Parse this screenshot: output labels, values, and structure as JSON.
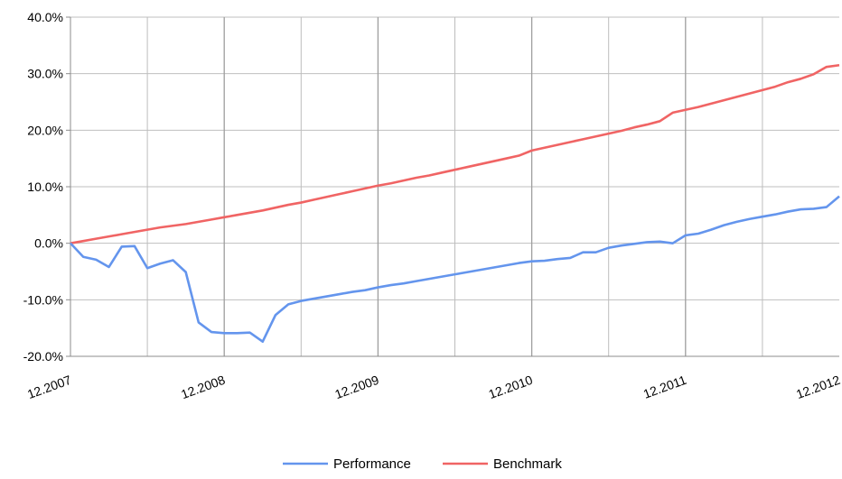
{
  "chart_data": {
    "type": "line",
    "title": "",
    "xlabel": "",
    "ylabel": "",
    "x_range": [
      "2007-12",
      "2012-12"
    ],
    "ylim": [
      -20,
      40
    ],
    "y_ticks": [
      -20,
      -10,
      0,
      10,
      20,
      30,
      40
    ],
    "y_tick_labels": [
      "-20.0%",
      "-10.0%",
      "0.0%",
      "10.0%",
      "20.0%",
      "30.0%",
      "40.0%"
    ],
    "x_ticks": [
      "2007-12",
      "2008-12",
      "2009-12",
      "2010-12",
      "2011-12",
      "2012-12"
    ],
    "x_tick_labels": [
      "12.2007",
      "12.2008",
      "12.2009",
      "12.2010",
      "12.2011",
      "12.2012"
    ],
    "grid": true,
    "legend_position": "bottom",
    "series": [
      {
        "name": "Performance",
        "color": "#6495ED",
        "points": [
          [
            "2007-12",
            0.0
          ],
          [
            "2008-01",
            -2.4
          ],
          [
            "2008-02",
            -2.9
          ],
          [
            "2008-03",
            -4.2
          ],
          [
            "2008-04",
            -0.6
          ],
          [
            "2008-05",
            -0.5
          ],
          [
            "2008-06",
            -4.4
          ],
          [
            "2008-07",
            -3.6
          ],
          [
            "2008-08",
            -3.0
          ],
          [
            "2008-09",
            -5.1
          ],
          [
            "2008-10",
            -14.0
          ],
          [
            "2008-11",
            -15.7
          ],
          [
            "2008-12",
            -15.9
          ],
          [
            "2009-01",
            -15.9
          ],
          [
            "2009-02",
            -15.8
          ],
          [
            "2009-03",
            -17.4
          ],
          [
            "2009-04",
            -12.7
          ],
          [
            "2009-05",
            -10.8
          ],
          [
            "2009-06",
            -10.2
          ],
          [
            "2009-07",
            -9.8
          ],
          [
            "2009-08",
            -9.4
          ],
          [
            "2009-09",
            -9.0
          ],
          [
            "2009-10",
            -8.6
          ],
          [
            "2009-11",
            -8.3
          ],
          [
            "2009-12",
            -7.8
          ],
          [
            "2010-01",
            -7.4
          ],
          [
            "2010-02",
            -7.1
          ],
          [
            "2010-03",
            -6.7
          ],
          [
            "2010-04",
            -6.3
          ],
          [
            "2010-05",
            -5.9
          ],
          [
            "2010-06",
            -5.5
          ],
          [
            "2010-07",
            -5.1
          ],
          [
            "2010-08",
            -4.7
          ],
          [
            "2010-09",
            -4.3
          ],
          [
            "2010-10",
            -3.9
          ],
          [
            "2010-11",
            -3.5
          ],
          [
            "2010-12",
            -3.2
          ],
          [
            "2011-01",
            -3.1
          ],
          [
            "2011-02",
            -2.8
          ],
          [
            "2011-03",
            -2.6
          ],
          [
            "2011-04",
            -1.6
          ],
          [
            "2011-05",
            -1.6
          ],
          [
            "2011-06",
            -0.8
          ],
          [
            "2011-07",
            -0.4
          ],
          [
            "2011-08",
            -0.1
          ],
          [
            "2011-09",
            0.2
          ],
          [
            "2011-10",
            0.3
          ],
          [
            "2011-11",
            0.0
          ],
          [
            "2011-12",
            1.4
          ],
          [
            "2012-01",
            1.7
          ],
          [
            "2012-02",
            2.4
          ],
          [
            "2012-03",
            3.2
          ],
          [
            "2012-04",
            3.8
          ],
          [
            "2012-05",
            4.3
          ],
          [
            "2012-06",
            4.7
          ],
          [
            "2012-07",
            5.1
          ],
          [
            "2012-08",
            5.6
          ],
          [
            "2012-09",
            6.0
          ],
          [
            "2012-10",
            6.1
          ],
          [
            "2012-11",
            6.4
          ],
          [
            "2012-12",
            8.3
          ]
        ]
      },
      {
        "name": "Benchmark",
        "color": "#F06464",
        "points": [
          [
            "2007-12",
            0.0
          ],
          [
            "2008-01",
            0.4
          ],
          [
            "2008-02",
            0.8
          ],
          [
            "2008-03",
            1.2
          ],
          [
            "2008-04",
            1.6
          ],
          [
            "2008-05",
            2.0
          ],
          [
            "2008-06",
            2.4
          ],
          [
            "2008-07",
            2.8
          ],
          [
            "2008-08",
            3.1
          ],
          [
            "2008-09",
            3.4
          ],
          [
            "2008-10",
            3.8
          ],
          [
            "2008-11",
            4.2
          ],
          [
            "2008-12",
            4.6
          ],
          [
            "2009-01",
            5.0
          ],
          [
            "2009-02",
            5.4
          ],
          [
            "2009-03",
            5.8
          ],
          [
            "2009-04",
            6.3
          ],
          [
            "2009-05",
            6.8
          ],
          [
            "2009-06",
            7.2
          ],
          [
            "2009-07",
            7.7
          ],
          [
            "2009-08",
            8.2
          ],
          [
            "2009-09",
            8.7
          ],
          [
            "2009-10",
            9.2
          ],
          [
            "2009-11",
            9.7
          ],
          [
            "2009-12",
            10.2
          ],
          [
            "2010-01",
            10.6
          ],
          [
            "2010-02",
            11.1
          ],
          [
            "2010-03",
            11.6
          ],
          [
            "2010-04",
            12.0
          ],
          [
            "2010-05",
            12.5
          ],
          [
            "2010-06",
            13.0
          ],
          [
            "2010-07",
            13.5
          ],
          [
            "2010-08",
            14.0
          ],
          [
            "2010-09",
            14.5
          ],
          [
            "2010-10",
            15.0
          ],
          [
            "2010-11",
            15.5
          ],
          [
            "2010-12",
            16.4
          ],
          [
            "2011-01",
            16.9
          ],
          [
            "2011-02",
            17.4
          ],
          [
            "2011-03",
            17.9
          ],
          [
            "2011-04",
            18.4
          ],
          [
            "2011-05",
            18.9
          ],
          [
            "2011-06",
            19.4
          ],
          [
            "2011-07",
            19.9
          ],
          [
            "2011-08",
            20.5
          ],
          [
            "2011-09",
            21.0
          ],
          [
            "2011-10",
            21.6
          ],
          [
            "2011-11",
            23.1
          ],
          [
            "2011-12",
            23.6
          ],
          [
            "2012-01",
            24.1
          ],
          [
            "2012-02",
            24.7
          ],
          [
            "2012-03",
            25.3
          ],
          [
            "2012-04",
            25.9
          ],
          [
            "2012-05",
            26.5
          ],
          [
            "2012-06",
            27.1
          ],
          [
            "2012-07",
            27.7
          ],
          [
            "2012-08",
            28.5
          ],
          [
            "2012-09",
            29.1
          ],
          [
            "2012-10",
            29.9
          ],
          [
            "2012-11",
            31.2
          ],
          [
            "2012-12",
            31.5
          ]
        ]
      }
    ]
  }
}
